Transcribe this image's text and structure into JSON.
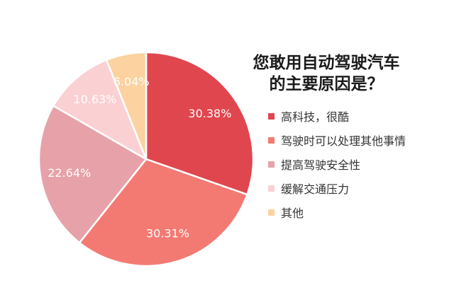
{
  "chart_data": {
    "type": "pie",
    "title_line1": "您敢用自动驾驶汽车",
    "title_line2": "的主要原因是？",
    "slices": [
      {
        "label": "高科技，很酷",
        "value": 30.38,
        "value_label": "30.38%",
        "color": "#e0464e"
      },
      {
        "label": "驾驶时可以处理其他事情",
        "value": 30.31,
        "value_label": "30.31%",
        "color": "#f37a73"
      },
      {
        "label": "提高驾驶安全性",
        "value": 22.64,
        "value_label": "22.64%",
        "color": "#e6a2a8"
      },
      {
        "label": "缓解交通压力",
        "value": 10.63,
        "value_label": "10.63%",
        "color": "#fbd0d3"
      },
      {
        "label": "其他",
        "value": 6.04,
        "value_label": "6.04%",
        "color": "#fbd2a0"
      }
    ],
    "legend_position": "right"
  }
}
